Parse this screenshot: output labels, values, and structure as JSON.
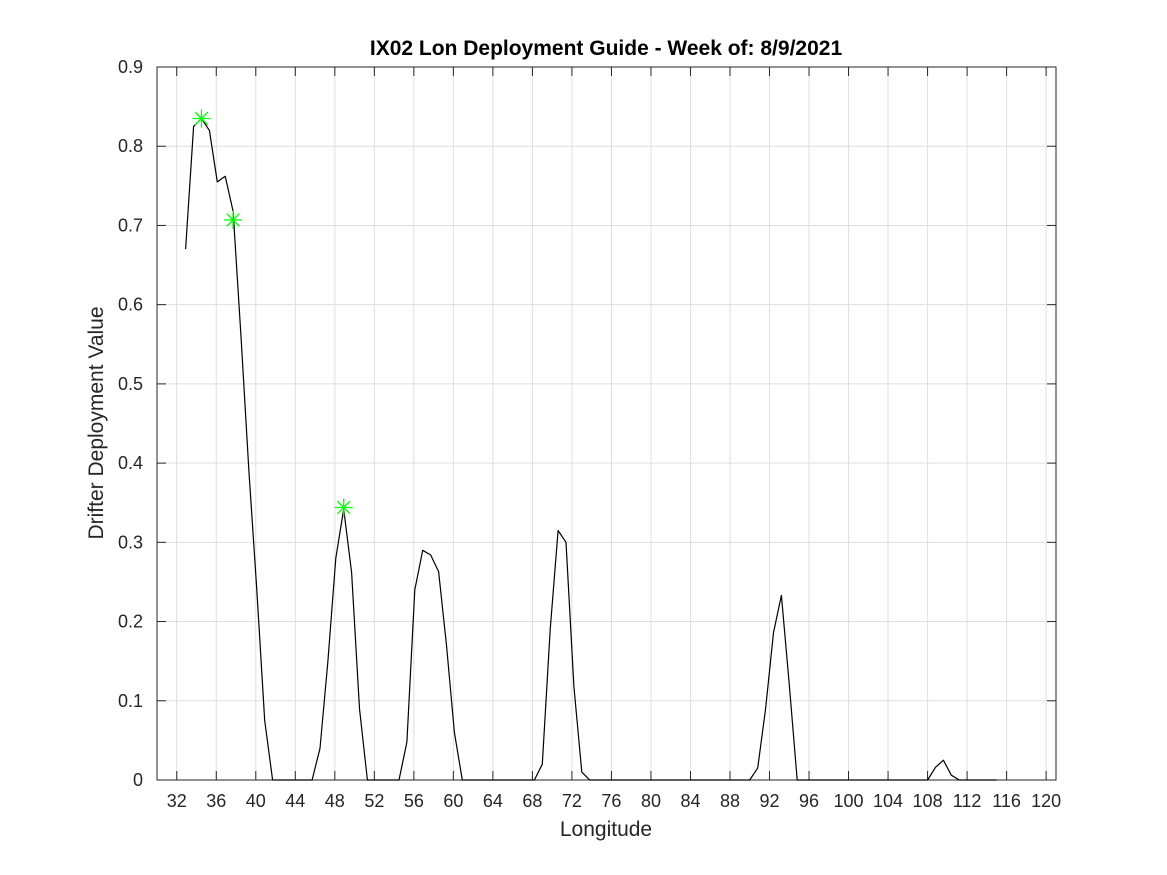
{
  "chart_data": {
    "type": "line",
    "title": "IX02 Lon Deployment Guide - Week of: 8/9/2021",
    "xlabel": "Longitude",
    "ylabel": "Drifter Deployment Value",
    "xlim": [
      30,
      121
    ],
    "ylim": [
      0,
      0.9
    ],
    "xticks": [
      32,
      36,
      40,
      44,
      48,
      52,
      56,
      60,
      64,
      68,
      72,
      76,
      80,
      84,
      88,
      92,
      96,
      100,
      104,
      108,
      112,
      116,
      120
    ],
    "yticks": [
      0,
      0.1,
      0.2,
      0.3,
      0.4,
      0.5,
      0.6,
      0.7,
      0.8,
      0.9
    ],
    "ytick_labels": [
      "0",
      "0.1",
      "0.2",
      "0.3",
      "0.4",
      "0.5",
      "0.6",
      "0.7",
      "0.8",
      "0.9"
    ],
    "grid": true,
    "line_color": "#000000",
    "marker_color": "#00ff00",
    "series": [
      {
        "x": [
          32.9,
          33.7,
          34.5,
          35.3,
          36.1,
          36.9,
          37.7,
          38.5,
          39.3,
          40.1,
          40.9,
          41.7,
          42.5,
          43.3,
          44.1,
          44.9,
          45.7,
          46.5,
          47.3,
          48.1,
          48.9,
          49.7,
          50.5,
          51.3,
          52.1,
          52.9,
          53.7,
          54.5,
          55.3,
          56.1,
          56.9,
          57.7,
          58.5,
          59.3,
          60.1,
          60.9,
          61.7,
          68.2,
          69.0,
          69.8,
          70.6,
          71.4,
          72.2,
          73.0,
          73.8,
          90.0,
          90.8,
          91.6,
          92.4,
          93.2,
          94.0,
          94.8,
          108.0,
          108.8,
          109.6,
          110.4,
          111.2,
          112.0,
          115.0
        ],
        "values": [
          0.67,
          0.825,
          0.835,
          0.82,
          0.755,
          0.762,
          0.718,
          0.56,
          0.39,
          0.24,
          0.075,
          0.0,
          0.0,
          0.0,
          0.0,
          0.0,
          0.0,
          0.04,
          0.15,
          0.28,
          0.342,
          0.262,
          0.09,
          0.0,
          0.0,
          0.0,
          0.0,
          0.0,
          0.048,
          0.24,
          0.29,
          0.284,
          0.263,
          0.17,
          0.06,
          0.0,
          0.0,
          0.0,
          0.02,
          0.19,
          0.315,
          0.3,
          0.118,
          0.01,
          0.0,
          0.0,
          0.015,
          0.09,
          0.186,
          0.233,
          0.12,
          0.0,
          0.0,
          0.016,
          0.025,
          0.006,
          0.0,
          0.0,
          0.0
        ]
      }
    ],
    "markers": [
      {
        "x": 34.5,
        "y": 0.835
      },
      {
        "x": 37.7,
        "y": 0.707
      },
      {
        "x": 48.9,
        "y": 0.344
      }
    ]
  }
}
